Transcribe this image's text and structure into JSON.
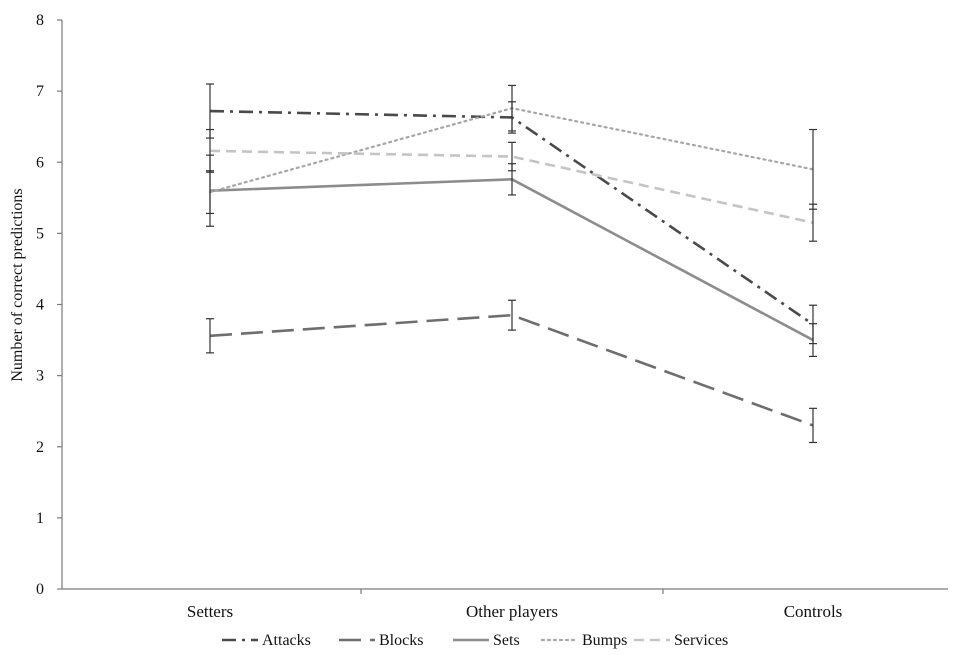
{
  "chart_data": {
    "type": "line",
    "title": "",
    "xlabel": "",
    "ylabel": "Number of correct predictions",
    "categories": [
      "Setters",
      "Other players",
      "Controls"
    ],
    "ylim": [
      0,
      8
    ],
    "yticks": [
      0,
      1,
      2,
      3,
      4,
      5,
      6,
      7,
      8
    ],
    "grid": false,
    "legend_position": "bottom",
    "series": [
      {
        "name": "Attacks",
        "values": [
          6.72,
          6.63,
          3.72
        ],
        "error": [
          0.38,
          0.22,
          0.27
        ],
        "color": "#4a4a4a",
        "dash": "dash-dot"
      },
      {
        "name": "Blocks",
        "values": [
          3.56,
          3.85,
          2.3
        ],
        "error": [
          0.24,
          0.21,
          0.24
        ],
        "color": "#6e6e6e",
        "dash": "long-dash"
      },
      {
        "name": "Sets",
        "values": [
          5.6,
          5.76,
          3.5
        ],
        "error": [
          0.5,
          0.22,
          0.23
        ],
        "color": "#8c8c8c",
        "dash": "solid"
      },
      {
        "name": "Bumps",
        "values": [
          5.58,
          6.76,
          5.9
        ],
        "error": [
          0.3,
          0.32,
          0.56
        ],
        "color": "#a6a6a6",
        "dash": "dotted"
      },
      {
        "name": "Services",
        "values": [
          6.16,
          6.08,
          5.15
        ],
        "error": [
          0.3,
          0.2,
          0.26
        ],
        "color": "#c4c4c4",
        "dash": "short-dash"
      }
    ]
  }
}
